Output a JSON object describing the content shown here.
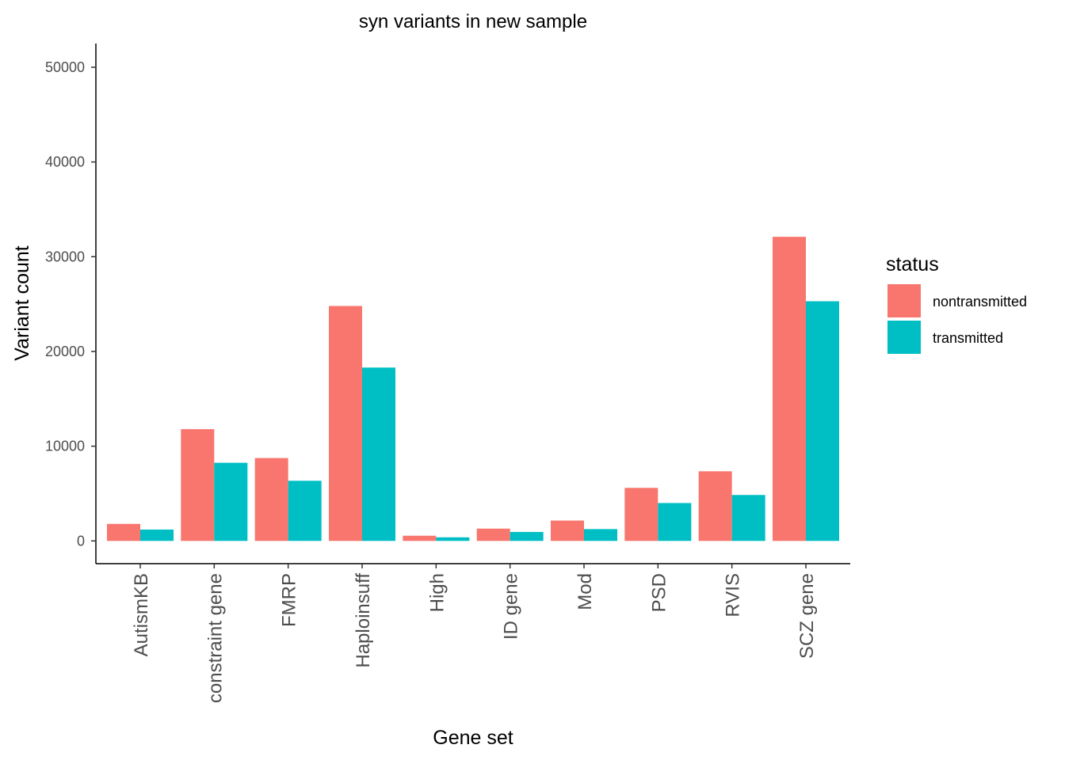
{
  "chart_data": {
    "type": "bar",
    "title": "syn variants in new sample",
    "xlabel": "Gene set",
    "ylabel": "Variant count",
    "categories": [
      "AutismKB",
      "constraint gene",
      "FMRP",
      "Haploinsuff",
      "High",
      "ID gene",
      "Mod",
      "PSD",
      "RVIS",
      "SCZ gene"
    ],
    "series": [
      {
        "name": "nontransmitted",
        "color": "#F8766D",
        "values": [
          1800,
          11800,
          8750,
          24800,
          550,
          1300,
          2150,
          5600,
          7350,
          32100
        ]
      },
      {
        "name": "transmitted",
        "color": "#00BFC4",
        "values": [
          1200,
          8250,
          6350,
          18300,
          380,
          950,
          1250,
          4000,
          4850,
          25300
        ]
      }
    ],
    "yticks": [
      0,
      10000,
      20000,
      30000,
      40000,
      50000
    ],
    "ylim": [
      -2400,
      52500
    ],
    "grid": false,
    "legend": {
      "title": "status",
      "position": "right"
    }
  }
}
